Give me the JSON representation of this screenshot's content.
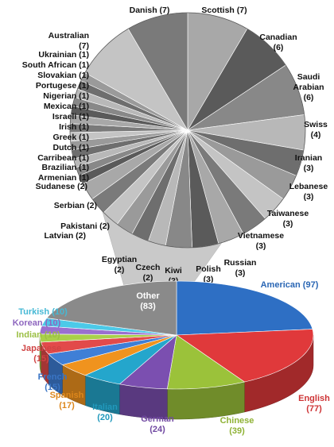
{
  "chart_data": [
    {
      "type": "pie",
      "title": "",
      "slices": [
        {
          "label": "Scottish",
          "value": 7
        },
        {
          "label": "Canadian",
          "value": 6
        },
        {
          "label": "Saudi Arabian",
          "value": 6
        },
        {
          "label": "Swiss",
          "value": 4
        },
        {
          "label": "Iranian",
          "value": 3
        },
        {
          "label": "Lebanese",
          "value": 3
        },
        {
          "label": "Taiwanese",
          "value": 3
        },
        {
          "label": "Vietnamese",
          "value": 3
        },
        {
          "label": "Russian",
          "value": 3
        },
        {
          "label": "Polish",
          "value": 3
        },
        {
          "label": "Kiwi",
          "value": 3
        },
        {
          "label": "Czech",
          "value": 2
        },
        {
          "label": "Egyptian",
          "value": 2
        },
        {
          "label": "Latvian",
          "value": 2
        },
        {
          "label": "Pakistani",
          "value": 2
        },
        {
          "label": "Serbian",
          "value": 2
        },
        {
          "label": "Sudanese",
          "value": 2
        },
        {
          "label": "Armenian",
          "value": 1
        },
        {
          "label": "Brazilian",
          "value": 1
        },
        {
          "label": "Carribean",
          "value": 1
        },
        {
          "label": "Dutch",
          "value": 1
        },
        {
          "label": "Greek",
          "value": 1
        },
        {
          "label": "Irish",
          "value": 1
        },
        {
          "label": "Israeli",
          "value": 1
        },
        {
          "label": "Mexican",
          "value": 1
        },
        {
          "label": "Nigerian",
          "value": 1
        },
        {
          "label": "Portugese",
          "value": 1
        },
        {
          "label": "Slovakian",
          "value": 1
        },
        {
          "label": "South African",
          "value": 1
        },
        {
          "label": "Ukrainian",
          "value": 1
        },
        {
          "label": "Australian",
          "value": 7
        },
        {
          "label": "Danish",
          "value": 7
        }
      ]
    },
    {
      "type": "pie",
      "title": "",
      "style": "3d",
      "slices": [
        {
          "label": "American",
          "value": 97,
          "color": "#2e6fc4"
        },
        {
          "label": "English",
          "value": 77,
          "color": "#e0393b"
        },
        {
          "label": "Chinese",
          "value": 39,
          "color": "#9bc23a"
        },
        {
          "label": "German",
          "value": 24,
          "color": "#7b4fb0"
        },
        {
          "label": "Italian",
          "value": 20,
          "color": "#24a6cc"
        },
        {
          "label": "Spanish",
          "value": 17,
          "color": "#f0931e"
        },
        {
          "label": "French",
          "value": 15,
          "color": "#3f7fd6"
        },
        {
          "label": "Japanese",
          "value": 15,
          "color": "#e24a4a"
        },
        {
          "label": "Indian",
          "value": 10,
          "color": "#a9d04a"
        },
        {
          "label": "Korean",
          "value": 10,
          "color": "#9a6fd0"
        },
        {
          "label": "Turkish",
          "value": 10,
          "color": "#4cc9e8"
        },
        {
          "label": "Other",
          "value": 83,
          "color": "#8a8a8a"
        }
      ]
    }
  ]
}
